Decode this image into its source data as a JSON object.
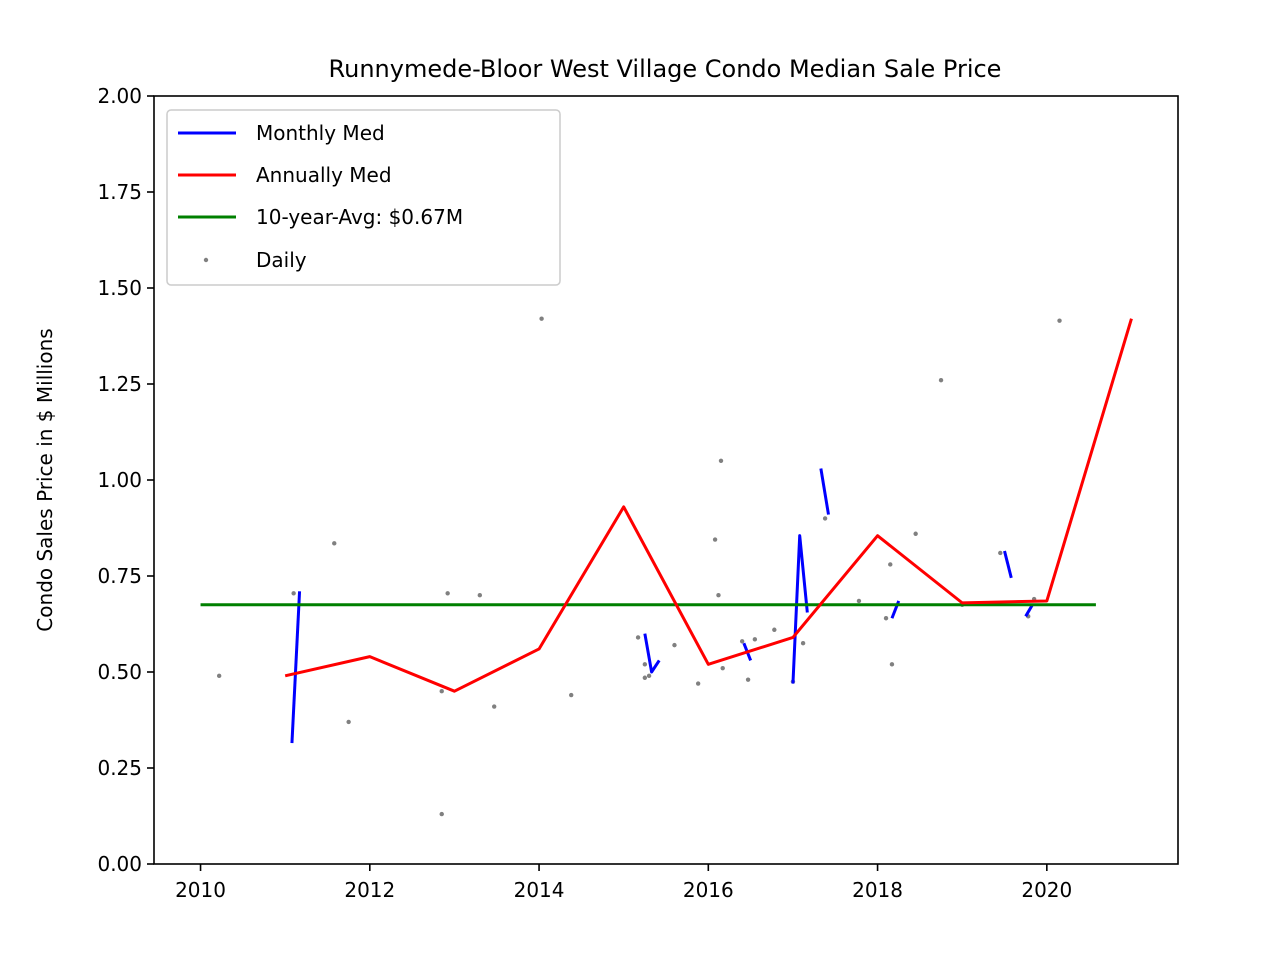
{
  "chart_data": {
    "type": "line",
    "title": "Runnymede-Bloor West Village Condo Median Sale Price",
    "xlabel": "",
    "ylabel": "Condo Sales Price in $ Millions",
    "xlim": [
      2009.45,
      2021.55
    ],
    "ylim": [
      0,
      2.0
    ],
    "x_ticks": [
      2010,
      2012,
      2014,
      2016,
      2018,
      2020
    ],
    "x_tick_labels": [
      "2010",
      "2012",
      "2014",
      "2016",
      "2018",
      "2020"
    ],
    "y_ticks": [
      0,
      0.25,
      0.5,
      0.75,
      1.0,
      1.25,
      1.5,
      1.75,
      2.0
    ],
    "y_tick_labels": [
      "0.00",
      "0.25",
      "0.50",
      "0.75",
      "1.00",
      "1.25",
      "1.50",
      "1.75",
      "2.00"
    ],
    "grid": false,
    "legend_position": "top-left",
    "colors": {
      "monthly": "#0000ff",
      "annual": "#ff0000",
      "avg": "#008000",
      "daily": "#808080"
    },
    "legend": [
      {
        "label": "Monthly Med",
        "kind": "line",
        "color": "#0000ff"
      },
      {
        "label": "Annually Med",
        "kind": "line",
        "color": "#ff0000"
      },
      {
        "label": "10-year-Avg: $0.67M",
        "kind": "line",
        "color": "#008000"
      },
      {
        "label": "Daily",
        "kind": "point",
        "color": "#808080"
      }
    ],
    "series": [
      {
        "name": "Annually Med",
        "x": [
          2011,
          2012,
          2013,
          2014,
          2015,
          2016,
          2017,
          2018,
          2019,
          2020,
          2021
        ],
        "values": [
          0.49,
          0.54,
          0.45,
          0.56,
          0.93,
          0.52,
          0.59,
          0.855,
          0.68,
          0.685,
          1.42
        ]
      },
      {
        "name": "10-year-Avg: $0.67M",
        "x": [
          2010,
          2020.58
        ],
        "values": [
          0.675,
          0.675
        ]
      }
    ],
    "monthly_segments": [
      {
        "x": [
          2011.08,
          2011.17
        ],
        "values": [
          0.315,
          0.71
        ]
      },
      {
        "x": [
          2015.25,
          2015.33,
          2015.42
        ],
        "values": [
          0.6,
          0.5,
          0.53
        ]
      },
      {
        "x": [
          2016.42,
          2016.5
        ],
        "values": [
          0.575,
          0.53
        ]
      },
      {
        "x": [
          2017.0,
          2017.08,
          2017.17
        ],
        "values": [
          0.47,
          0.855,
          0.655
        ]
      },
      {
        "x": [
          2017.33,
          2017.42
        ],
        "values": [
          1.03,
          0.91
        ]
      },
      {
        "x": [
          2018.17,
          2018.25
        ],
        "values": [
          0.64,
          0.685
        ]
      },
      {
        "x": [
          2019.5,
          2019.58
        ],
        "values": [
          0.815,
          0.745
        ]
      },
      {
        "x": [
          2019.75,
          2019.83
        ],
        "values": [
          0.645,
          0.675
        ]
      }
    ],
    "daily_points": [
      {
        "x": 2010.22,
        "y": 0.49
      },
      {
        "x": 2011.1,
        "y": 0.705
      },
      {
        "x": 2011.58,
        "y": 0.835
      },
      {
        "x": 2011.75,
        "y": 0.37
      },
      {
        "x": 2012.85,
        "y": 0.45
      },
      {
        "x": 2012.85,
        "y": 0.13
      },
      {
        "x": 2012.92,
        "y": 0.705
      },
      {
        "x": 2013.3,
        "y": 0.7
      },
      {
        "x": 2013.47,
        "y": 0.41
      },
      {
        "x": 2014.03,
        "y": 1.42
      },
      {
        "x": 2014.38,
        "y": 0.44
      },
      {
        "x": 2015.17,
        "y": 0.59
      },
      {
        "x": 2015.25,
        "y": 0.52
      },
      {
        "x": 2015.25,
        "y": 0.485
      },
      {
        "x": 2015.3,
        "y": 0.49
      },
      {
        "x": 2015.6,
        "y": 0.57
      },
      {
        "x": 2015.88,
        "y": 0.47
      },
      {
        "x": 2016.08,
        "y": 0.845
      },
      {
        "x": 2016.12,
        "y": 0.7
      },
      {
        "x": 2016.15,
        "y": 1.05
      },
      {
        "x": 2016.17,
        "y": 0.51
      },
      {
        "x": 2016.4,
        "y": 0.58
      },
      {
        "x": 2016.47,
        "y": 0.48
      },
      {
        "x": 2016.55,
        "y": 0.585
      },
      {
        "x": 2016.78,
        "y": 0.61
      },
      {
        "x": 2017.0,
        "y": 0.475
      },
      {
        "x": 2017.12,
        "y": 0.575
      },
      {
        "x": 2017.38,
        "y": 0.9
      },
      {
        "x": 2017.78,
        "y": 0.685
      },
      {
        "x": 2018.1,
        "y": 0.64
      },
      {
        "x": 2018.15,
        "y": 0.78
      },
      {
        "x": 2018.17,
        "y": 0.52
      },
      {
        "x": 2018.45,
        "y": 0.86
      },
      {
        "x": 2018.75,
        "y": 1.26
      },
      {
        "x": 2019.0,
        "y": 0.675
      },
      {
        "x": 2019.45,
        "y": 0.81
      },
      {
        "x": 2019.78,
        "y": 0.645
      },
      {
        "x": 2019.85,
        "y": 0.69
      },
      {
        "x": 2020.15,
        "y": 1.415
      }
    ]
  }
}
